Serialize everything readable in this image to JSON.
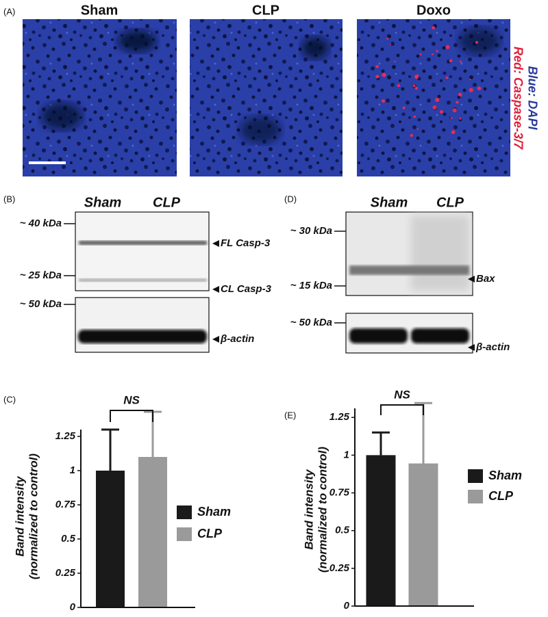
{
  "panel_a": {
    "label": "(A)",
    "titles": [
      "Sham",
      "CLP",
      "Doxo"
    ],
    "stain_labels": [
      "Blue: DAPI",
      "Red: Caspase-3/7"
    ]
  },
  "panel_b": {
    "label": "(B)",
    "lanes": [
      "Sham",
      "CLP"
    ],
    "markers": [
      "~ 40 kDa",
      "~ 25 kDa",
      "~ 50 kDa"
    ],
    "bands": [
      "FL Casp-3",
      "CL Casp-3",
      "β-actin"
    ]
  },
  "panel_d": {
    "label": "(D)",
    "lanes": [
      "Sham",
      "CLP"
    ],
    "markers": [
      "~ 30 kDa",
      "~ 15 kDa",
      "~ 50 kDa"
    ],
    "bands": [
      "Bax",
      "β-actin"
    ]
  },
  "chart_data": [
    {
      "type": "bar",
      "panel_label": "(C)",
      "annotation": "NS",
      "ylabel": [
        "Band intensity",
        "(normalized to control)"
      ],
      "categories": [
        "Sham",
        "CLP"
      ],
      "values": [
        1.0,
        1.1
      ],
      "errors": [
        0.3,
        0.33
      ],
      "colors": [
        "#1a1a1a",
        "#9a9a9a"
      ],
      "ylim": [
        0,
        1.3
      ],
      "yticks": [
        0,
        0.25,
        0.5,
        0.75,
        1,
        1.25
      ]
    },
    {
      "type": "bar",
      "panel_label": "(E)",
      "annotation": "NS",
      "ylabel": [
        "Band intensity",
        "(normalized to control)"
      ],
      "categories": [
        "Sham",
        "CLP"
      ],
      "values": [
        1.0,
        0.945
      ],
      "errors": [
        0.15,
        0.4
      ],
      "colors": [
        "#1a1a1a",
        "#9a9a9a"
      ],
      "ylim": [
        0,
        1.31
      ],
      "yticks": [
        0,
        0.25,
        0.5,
        0.75,
        1,
        1.25
      ]
    }
  ]
}
